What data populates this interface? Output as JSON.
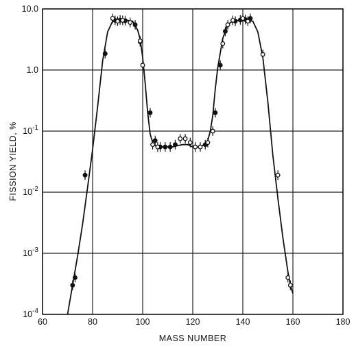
{
  "chart_data": {
    "type": "scatter",
    "title": "",
    "xlabel": "MASS NUMBER",
    "ylabel": "FISSION YIELD, %",
    "xlim": [
      60,
      180
    ],
    "ylim": [
      0.0001,
      10
    ],
    "y_scale": "log",
    "grid": true,
    "x_ticks": [
      {
        "value": 60,
        "label": "60"
      },
      {
        "value": 80,
        "label": "80"
      },
      {
        "value": 100,
        "label": "100"
      },
      {
        "value": 120,
        "label": "120"
      },
      {
        "value": 140,
        "label": "140"
      },
      {
        "value": 160,
        "label": "160"
      },
      {
        "value": 180,
        "label": "180"
      }
    ],
    "y_ticks": [
      {
        "value": 10,
        "label": "10.0",
        "mant": "10.0",
        "exp": ""
      },
      {
        "value": 1,
        "label": "1.0",
        "mant": "1.0",
        "exp": ""
      },
      {
        "value": 0.1,
        "label": "10^-1",
        "mant": "10",
        "exp": "-1"
      },
      {
        "value": 0.01,
        "label": "10^-2",
        "mant": "10",
        "exp": "-2"
      },
      {
        "value": 0.001,
        "label": "10^-3",
        "mant": "10",
        "exp": "-3"
      },
      {
        "value": 0.0001,
        "label": "10^-4",
        "mant": "10",
        "exp": "-4"
      }
    ],
    "curve": {
      "x": [
        70,
        72,
        74,
        76,
        78,
        80,
        82,
        84,
        86,
        88,
        90,
        92,
        94,
        96,
        98,
        99,
        100,
        101,
        102,
        103,
        104,
        105,
        106,
        108,
        110,
        112,
        114,
        116,
        118,
        120,
        122,
        124,
        126,
        127,
        128,
        129,
        130,
        132,
        134,
        136,
        138,
        140,
        142,
        144,
        146,
        148,
        150,
        152,
        154,
        156,
        158,
        159,
        160
      ],
      "y": [
        0.0001,
        0.0003,
        0.0009,
        0.003,
        0.012,
        0.05,
        0.25,
        1.4,
        4.2,
        6.3,
        6.5,
        6.5,
        6.5,
        6.3,
        4.5,
        3.2,
        1.6,
        0.6,
        0.2,
        0.09,
        0.065,
        0.058,
        0.055,
        0.055,
        0.055,
        0.055,
        0.058,
        0.06,
        0.06,
        0.055,
        0.055,
        0.058,
        0.07,
        0.1,
        0.18,
        0.5,
        1.1,
        3.3,
        5.6,
        6.3,
        6.5,
        6.5,
        6.5,
        6.3,
        4.2,
        1.6,
        0.3,
        0.04,
        0.008,
        0.0018,
        0.0005,
        0.0003,
        0.00022
      ]
    },
    "series": [
      {
        "marker": "filled",
        "x": [
          72,
          73,
          77,
          85,
          89,
          91,
          93,
          97,
          99,
          103,
          105,
          107,
          109,
          111,
          113,
          125,
          129,
          131,
          133,
          137,
          139,
          141,
          143
        ],
        "y": [
          0.0003,
          0.0004,
          0.019,
          1.85,
          6.5,
          6.6,
          6.4,
          5.5,
          2.9,
          0.2,
          0.07,
          0.055,
          0.055,
          0.055,
          0.06,
          0.06,
          0.2,
          1.2,
          4.3,
          6.3,
          6.6,
          6.7,
          7.0
        ]
      },
      {
        "marker": "open",
        "x": [
          88,
          90,
          92,
          95,
          99,
          100,
          104,
          106,
          115,
          117,
          119,
          121,
          123,
          126,
          128,
          132,
          134,
          136,
          140,
          142,
          148,
          154,
          158,
          159
        ],
        "y": [
          7.0,
          6.3,
          6.5,
          6.0,
          3.0,
          1.2,
          0.06,
          0.055,
          0.075,
          0.075,
          0.065,
          0.055,
          0.055,
          0.065,
          0.1,
          2.7,
          5.5,
          6.5,
          7.0,
          6.3,
          1.8,
          0.019,
          0.0004,
          0.0003
        ]
      }
    ]
  }
}
